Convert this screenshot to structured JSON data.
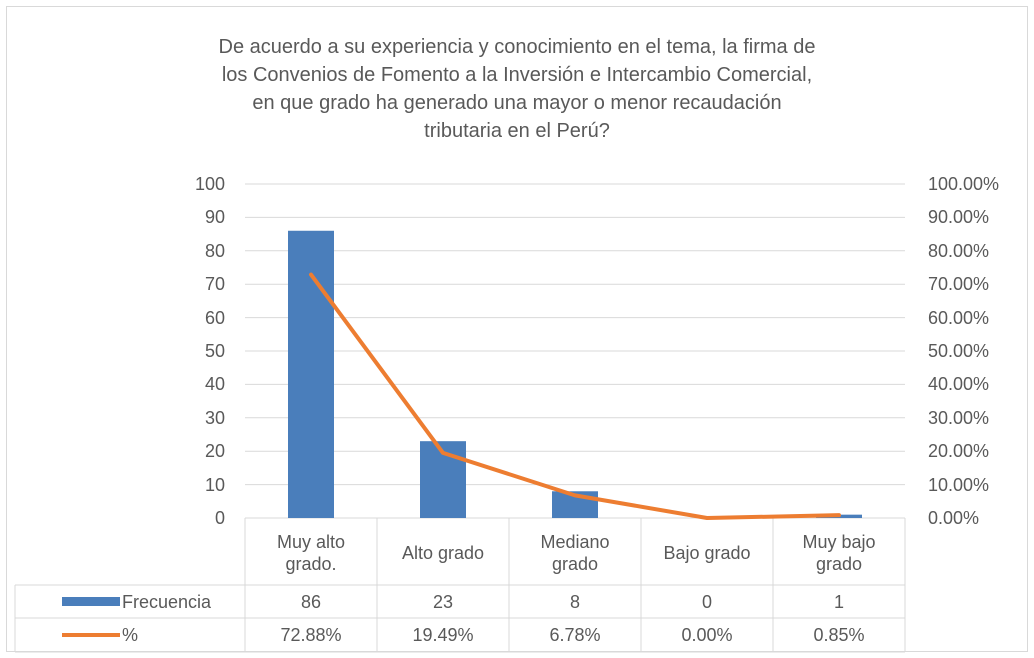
{
  "chart_data": {
    "type": "bar",
    "title": "De acuerdo a su experiencia y conocimiento en el tema, la firma de\nlos Convenios de Fomento a la Inversión e Intercambio Comercial,\nen que grado ha generado una mayor o menor recaudación\ntributaria en el Perú?",
    "categories": [
      "Muy alto\ngrado.",
      "Alto grado",
      "Mediano\ngrado",
      "Bajo grado",
      "Muy bajo\ngrado"
    ],
    "series": [
      {
        "name": "Frecuencia",
        "type": "bar",
        "color": "#4a7ebb",
        "values": [
          86,
          23,
          8,
          0,
          1
        ]
      },
      {
        "name": "%",
        "type": "line",
        "axis": "y2",
        "color": "#ed7d31",
        "values": [
          72.88,
          19.49,
          6.78,
          0,
          0.85
        ],
        "value_labels": [
          "72.88%",
          "19.49%",
          "6.78%",
          "0.00%",
          "0.85%"
        ]
      }
    ],
    "ylim": [
      0,
      100
    ],
    "yticks": [
      0,
      10,
      20,
      30,
      40,
      50,
      60,
      70,
      80,
      90,
      100
    ],
    "y2lim": [
      0,
      100
    ],
    "y2ticks": [
      {
        "value": 0,
        "label": "0.00%"
      },
      {
        "value": 10,
        "label": "10.00%"
      },
      {
        "value": 20,
        "label": "20.00%"
      },
      {
        "value": 30,
        "label": "30.00%"
      },
      {
        "value": 40,
        "label": "40.00%"
      },
      {
        "value": 50,
        "label": "50.00%"
      },
      {
        "value": 60,
        "label": "60.00%"
      },
      {
        "value": 70,
        "label": "70.00%"
      },
      {
        "value": 80,
        "label": "80.00%"
      },
      {
        "value": 90,
        "label": "90.00%"
      },
      {
        "value": 100,
        "label": "100.00%"
      }
    ],
    "grid": true,
    "data_table": true
  }
}
